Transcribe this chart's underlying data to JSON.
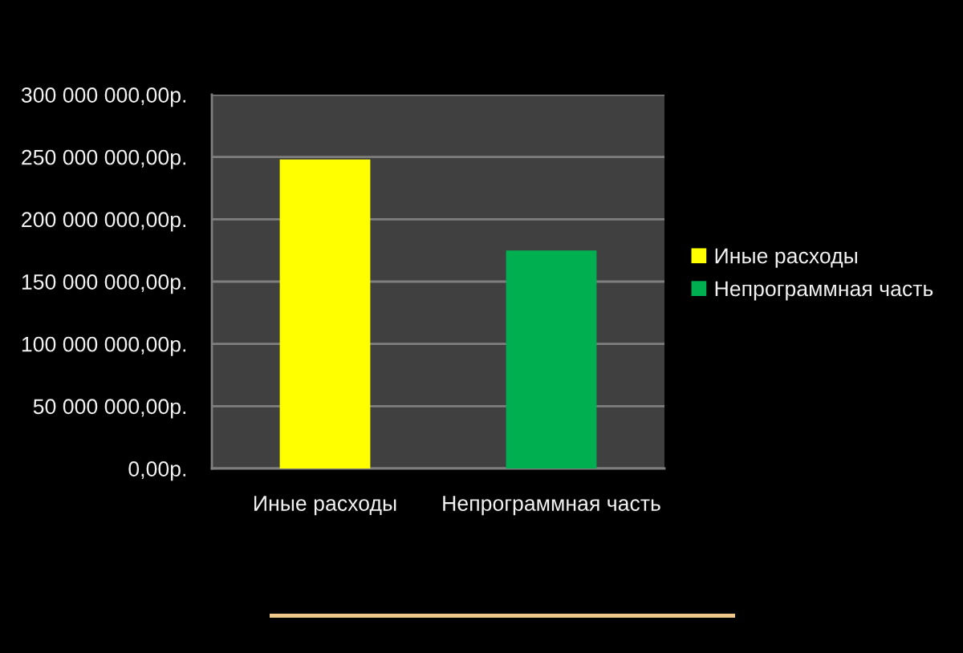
{
  "chart_data": {
    "type": "bar",
    "categories": [
      "Иные расходы",
      "Непрограммная часть"
    ],
    "series": [
      {
        "name": "Иные расходы",
        "color": "#ffff00",
        "values": [
          248000000,
          null
        ]
      },
      {
        "name": "Непрограммная часть",
        "color": "#00b050",
        "values": [
          null,
          175000000
        ]
      }
    ],
    "ylim": [
      0,
      300000000
    ],
    "yticks": [
      {
        "value": 0,
        "label": "0,00р."
      },
      {
        "value": 50000000,
        "label": "50 000 000,00р."
      },
      {
        "value": 100000000,
        "label": "100 000 000,00р."
      },
      {
        "value": 150000000,
        "label": "150 000 000,00р."
      },
      {
        "value": 200000000,
        "label": "200 000 000,00р."
      },
      {
        "value": 250000000,
        "label": "250 000 000,00р."
      },
      {
        "value": 300000000,
        "label": "300 000 000,00р."
      }
    ],
    "grid": "y",
    "legend": "right"
  }
}
